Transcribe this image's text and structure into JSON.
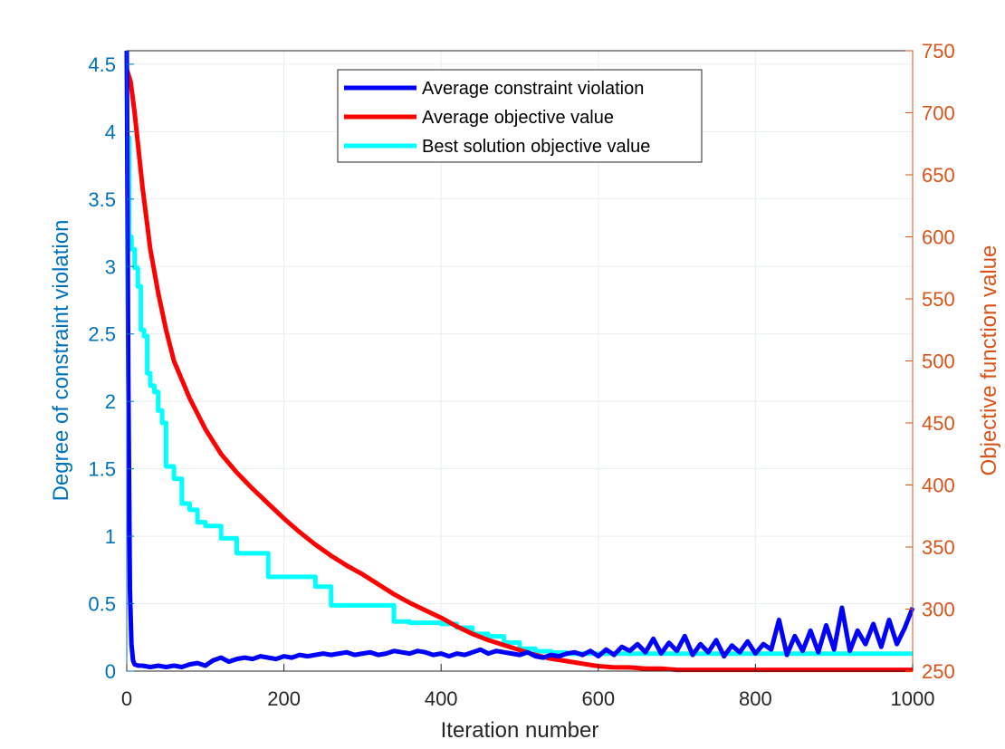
{
  "chart_data": {
    "type": "line",
    "title": "",
    "xlabel": "Iteration number",
    "ylabel_left": "Degree of constraint violation",
    "ylabel_right": "Objective function value",
    "xlim": [
      0,
      1000
    ],
    "ylim_left": [
      0,
      4.6
    ],
    "ylim_right": [
      250,
      750
    ],
    "xticks": [
      0,
      200,
      400,
      600,
      800,
      1000
    ],
    "xtick_labels": [
      "0",
      "200",
      "400",
      "600",
      "800",
      "1000"
    ],
    "yticks_left": [
      0,
      0.5,
      1,
      1.5,
      2,
      2.5,
      3,
      3.5,
      4,
      4.5
    ],
    "ytick_labels_left": [
      "0",
      "0.5",
      "1",
      "1.5",
      "2",
      "2.5",
      "3",
      "3.5",
      "4",
      "4.5"
    ],
    "yticks_right": [
      250,
      300,
      350,
      400,
      450,
      500,
      550,
      600,
      650,
      700,
      750
    ],
    "ytick_labels_right": [
      "250",
      "300",
      "350",
      "400",
      "450",
      "500",
      "550",
      "600",
      "650",
      "700",
      "750"
    ],
    "grid": true,
    "legend_position": "top-center",
    "series": [
      {
        "name": "Average constraint violation",
        "axis": "left",
        "color": "#0000ff",
        "x": [
          0,
          2,
          4,
          6,
          8,
          10,
          15,
          20,
          30,
          40,
          50,
          60,
          70,
          80,
          90,
          100,
          110,
          120,
          130,
          140,
          150,
          160,
          170,
          180,
          190,
          200,
          210,
          220,
          230,
          240,
          250,
          260,
          270,
          280,
          290,
          300,
          310,
          320,
          330,
          340,
          350,
          360,
          370,
          380,
          390,
          400,
          410,
          420,
          430,
          440,
          450,
          460,
          470,
          480,
          490,
          500,
          510,
          520,
          530,
          540,
          550,
          560,
          570,
          580,
          590,
          600,
          610,
          620,
          630,
          640,
          650,
          660,
          670,
          680,
          690,
          700,
          710,
          720,
          730,
          740,
          750,
          760,
          770,
          780,
          790,
          800,
          810,
          820,
          830,
          840,
          850,
          860,
          870,
          880,
          890,
          900,
          910,
          920,
          930,
          940,
          950,
          960,
          970,
          980,
          990,
          1000
        ],
        "values": [
          4.6,
          2.2,
          0.6,
          0.2,
          0.08,
          0.05,
          0.04,
          0.04,
          0.03,
          0.04,
          0.03,
          0.04,
          0.03,
          0.05,
          0.06,
          0.04,
          0.08,
          0.1,
          0.07,
          0.09,
          0.1,
          0.09,
          0.11,
          0.1,
          0.09,
          0.11,
          0.1,
          0.12,
          0.11,
          0.12,
          0.13,
          0.12,
          0.13,
          0.14,
          0.12,
          0.13,
          0.14,
          0.12,
          0.13,
          0.15,
          0.14,
          0.13,
          0.15,
          0.14,
          0.12,
          0.13,
          0.11,
          0.13,
          0.12,
          0.14,
          0.16,
          0.13,
          0.15,
          0.14,
          0.13,
          0.12,
          0.14,
          0.11,
          0.1,
          0.12,
          0.11,
          0.13,
          0.14,
          0.12,
          0.15,
          0.11,
          0.16,
          0.12,
          0.18,
          0.15,
          0.2,
          0.14,
          0.24,
          0.13,
          0.21,
          0.15,
          0.26,
          0.12,
          0.2,
          0.14,
          0.23,
          0.11,
          0.19,
          0.14,
          0.22,
          0.13,
          0.2,
          0.16,
          0.38,
          0.12,
          0.26,
          0.15,
          0.3,
          0.14,
          0.34,
          0.16,
          0.47,
          0.15,
          0.3,
          0.2,
          0.35,
          0.18,
          0.38,
          0.2,
          0.32,
          0.47
        ]
      },
      {
        "name": "Average objective value",
        "axis": "right",
        "color": "#ff0000",
        "x": [
          0,
          5,
          10,
          20,
          30,
          40,
          50,
          60,
          70,
          80,
          100,
          120,
          140,
          160,
          180,
          200,
          220,
          240,
          260,
          280,
          300,
          320,
          340,
          360,
          380,
          400,
          420,
          440,
          460,
          480,
          500,
          520,
          540,
          560,
          580,
          600,
          620,
          640,
          660,
          680,
          700,
          750,
          800,
          850,
          900,
          950,
          1000
        ],
        "values": [
          735,
          725,
          700,
          640,
          590,
          555,
          525,
          500,
          485,
          470,
          445,
          425,
          410,
          397,
          385,
          373,
          362,
          352,
          343,
          335,
          328,
          320,
          312,
          305,
          299,
          293,
          286,
          280,
          275,
          271,
          267,
          263,
          260,
          258,
          256,
          254,
          253,
          253,
          252,
          252,
          251,
          251,
          251,
          251,
          251,
          251,
          251
        ]
      },
      {
        "name": "Best solution objective value",
        "axis": "right",
        "color": "#00ffff",
        "x": [
          0,
          3,
          6,
          10,
          14,
          18,
          22,
          26,
          30,
          35,
          40,
          45,
          50,
          60,
          70,
          80,
          90,
          100,
          120,
          140,
          160,
          180,
          200,
          220,
          240,
          260,
          280,
          300,
          320,
          340,
          360,
          380,
          400,
          420,
          440,
          460,
          480,
          500,
          520,
          540,
          560,
          580,
          600,
          700,
          800,
          900,
          1000
        ],
        "values": [
          680,
          600,
          590,
          575,
          560,
          525,
          520,
          490,
          480,
          475,
          460,
          450,
          415,
          405,
          385,
          380,
          370,
          367,
          357,
          345,
          345,
          326,
          326,
          326,
          318,
          303,
          303,
          303,
          303,
          290,
          289,
          289,
          288,
          285,
          280,
          278,
          273,
          268,
          266,
          265,
          264,
          264,
          264,
          264,
          264,
          264,
          264
        ]
      }
    ]
  }
}
